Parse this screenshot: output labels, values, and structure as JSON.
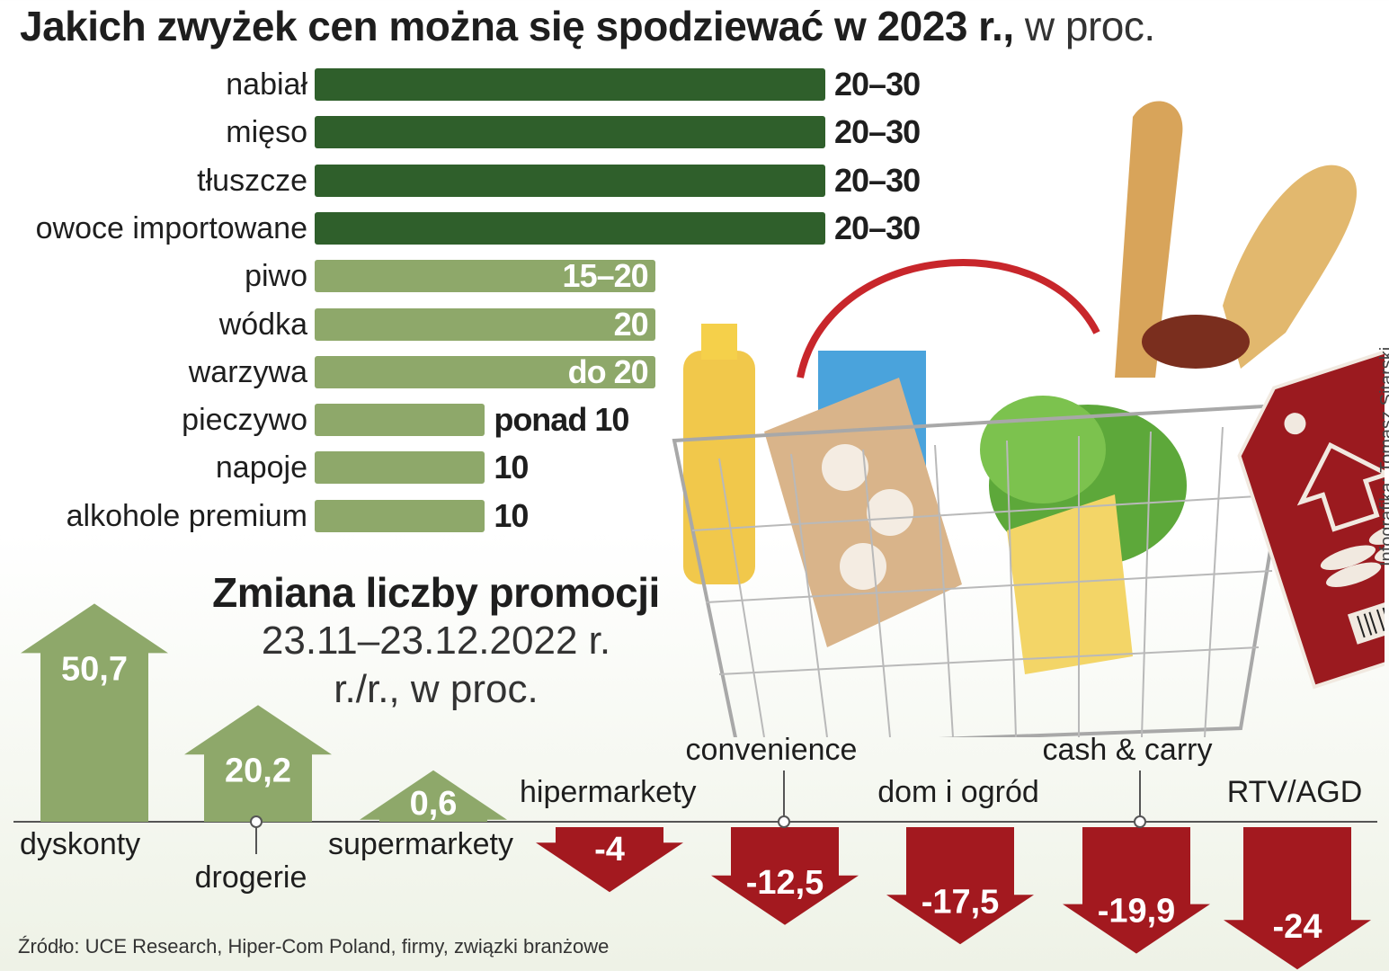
{
  "title": {
    "main": "Jakich zwyżek cen można się spodziewać w 2023 r.,",
    "unit": "w proc."
  },
  "chart_data": [
    {
      "type": "bar",
      "orientation": "horizontal",
      "title": "Jakich zwyżek cen można się spodziewać w 2023 r., w proc.",
      "categories": [
        "nabiał",
        "mięso",
        "tłuszcze",
        "owoce importowane",
        "piwo",
        "wódka",
        "warzywa",
        "pieczywo",
        "napoje",
        "alkohole premium"
      ],
      "labels": [
        "20–30",
        "20–30",
        "20–30",
        "20–30",
        "15–20",
        "20",
        "do 20",
        "ponad 10",
        "10",
        "10"
      ],
      "values": [
        30,
        30,
        30,
        30,
        20,
        20,
        20,
        10,
        10,
        10
      ],
      "colors": [
        "#2f5f2b",
        "#2f5f2b",
        "#2f5f2b",
        "#2f5f2b",
        "#8ea86a",
        "#8ea86a",
        "#8ea86a",
        "#8ea86a",
        "#8ea86a",
        "#8ea86a"
      ],
      "xlim": [
        0,
        30
      ]
    },
    {
      "type": "bar",
      "title": "Zmiana liczby promocji",
      "subtitle": "23.11–23.12.2022 r.",
      "unit": "r./r., w proc.",
      "categories": [
        "dyskonty",
        "drogerie",
        "supermarkety",
        "hipermarkety",
        "convenience",
        "dom i ogród",
        "cash & carry",
        "RTV/AGD"
      ],
      "values": [
        50.7,
        20.2,
        0.6,
        -4,
        -12.5,
        -17.5,
        -19.9,
        -24
      ],
      "value_labels": [
        "50,7",
        "20,2",
        "0,6",
        "-4",
        "-12,5",
        "-17,5",
        "-19,9",
        "-24"
      ],
      "positive_color": "#8ea86a",
      "negative_color": "#a3191f"
    }
  ],
  "source": "Źródło: UCE Research, Hiper-Com Poland, firmy, związki branżowe",
  "credit": "Infografika: Tomasz Sitarski",
  "illustration": "shopping-basket-with-price-tag"
}
